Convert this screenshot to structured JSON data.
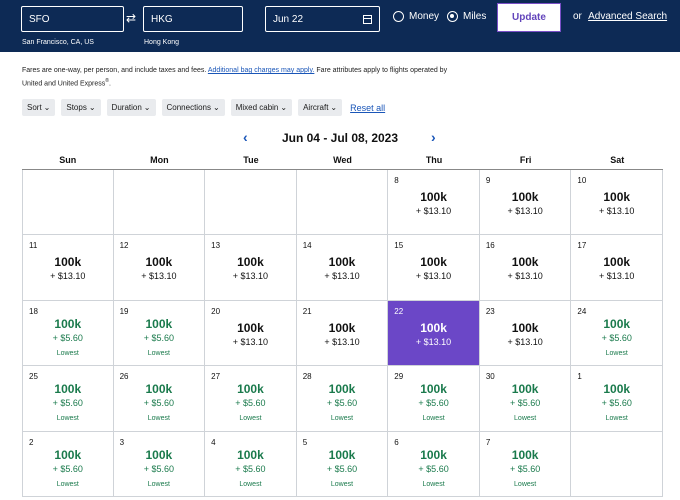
{
  "search": {
    "origin": "SFO",
    "origin_city": "San Francisco, CA, US",
    "destination": "HKG",
    "destination_city": "Hong Kong",
    "date": "Jun 22",
    "fare_money": "Money",
    "fare_miles": "Miles",
    "selected_fare": "Miles",
    "update_label": "Update",
    "or_label": "or",
    "advanced_label": "Advanced Search"
  },
  "notice": {
    "part1": "Fares are one-way, per person, and include taxes and fees.",
    "link": "Additional bag charges may apply.",
    "part2": "Fare attributes apply to flights operated by United and United Express",
    "reg": "®",
    "end": "."
  },
  "filters": [
    "Sort",
    "Stops",
    "Duration",
    "Connections",
    "Mixed cabin",
    "Aircraft"
  ],
  "reset_label": "Reset all",
  "month_title": "Jun 04 - Jul 08, 2023",
  "weekdays": [
    "Sun",
    "Mon",
    "Tue",
    "Wed",
    "Thu",
    "Fri",
    "Sat"
  ],
  "lowest_label": "Lowest",
  "colors": {
    "header": "#0d2a55",
    "selected": "#6b47c7",
    "lowest": "#1a7a4c",
    "link": "#1a56b8"
  },
  "days": [
    null,
    null,
    null,
    null,
    {
      "day": "8",
      "miles": "100k",
      "fee": "+ $13.10",
      "lowest": false
    },
    {
      "day": "9",
      "miles": "100k",
      "fee": "+ $13.10",
      "lowest": false
    },
    {
      "day": "10",
      "miles": "100k",
      "fee": "+ $13.10",
      "lowest": false
    },
    {
      "day": "11",
      "miles": "100k",
      "fee": "+ $13.10",
      "lowest": false
    },
    {
      "day": "12",
      "miles": "100k",
      "fee": "+ $13.10",
      "lowest": false
    },
    {
      "day": "13",
      "miles": "100k",
      "fee": "+ $13.10",
      "lowest": false
    },
    {
      "day": "14",
      "miles": "100k",
      "fee": "+ $13.10",
      "lowest": false
    },
    {
      "day": "15",
      "miles": "100k",
      "fee": "+ $13.10",
      "lowest": false
    },
    {
      "day": "16",
      "miles": "100k",
      "fee": "+ $13.10",
      "lowest": false
    },
    {
      "day": "17",
      "miles": "100k",
      "fee": "+ $13.10",
      "lowest": false
    },
    {
      "day": "18",
      "miles": "100k",
      "fee": "+ $5.60",
      "lowest": true
    },
    {
      "day": "19",
      "miles": "100k",
      "fee": "+ $5.60",
      "lowest": true
    },
    {
      "day": "20",
      "miles": "100k",
      "fee": "+ $13.10",
      "lowest": false
    },
    {
      "day": "21",
      "miles": "100k",
      "fee": "+ $13.10",
      "lowest": false
    },
    {
      "day": "22",
      "miles": "100k",
      "fee": "+ $13.10",
      "lowest": false,
      "selected": true
    },
    {
      "day": "23",
      "miles": "100k",
      "fee": "+ $13.10",
      "lowest": false
    },
    {
      "day": "24",
      "miles": "100k",
      "fee": "+ $5.60",
      "lowest": true
    },
    {
      "day": "25",
      "miles": "100k",
      "fee": "+ $5.60",
      "lowest": true
    },
    {
      "day": "26",
      "miles": "100k",
      "fee": "+ $5.60",
      "lowest": true
    },
    {
      "day": "27",
      "miles": "100k",
      "fee": "+ $5.60",
      "lowest": true
    },
    {
      "day": "28",
      "miles": "100k",
      "fee": "+ $5.60",
      "lowest": true
    },
    {
      "day": "29",
      "miles": "100k",
      "fee": "+ $5.60",
      "lowest": true
    },
    {
      "day": "30",
      "miles": "100k",
      "fee": "+ $5.60",
      "lowest": true
    },
    {
      "day": "1",
      "miles": "100k",
      "fee": "+ $5.60",
      "lowest": true
    },
    {
      "day": "2",
      "miles": "100k",
      "fee": "+ $5.60",
      "lowest": true
    },
    {
      "day": "3",
      "miles": "100k",
      "fee": "+ $5.60",
      "lowest": true
    },
    {
      "day": "4",
      "miles": "100k",
      "fee": "+ $5.60",
      "lowest": true
    },
    {
      "day": "5",
      "miles": "100k",
      "fee": "+ $5.60",
      "lowest": true
    },
    {
      "day": "6",
      "miles": "100k",
      "fee": "+ $5.60",
      "lowest": true
    },
    {
      "day": "7",
      "miles": "100k",
      "fee": "+ $5.60",
      "lowest": true
    },
    null
  ]
}
